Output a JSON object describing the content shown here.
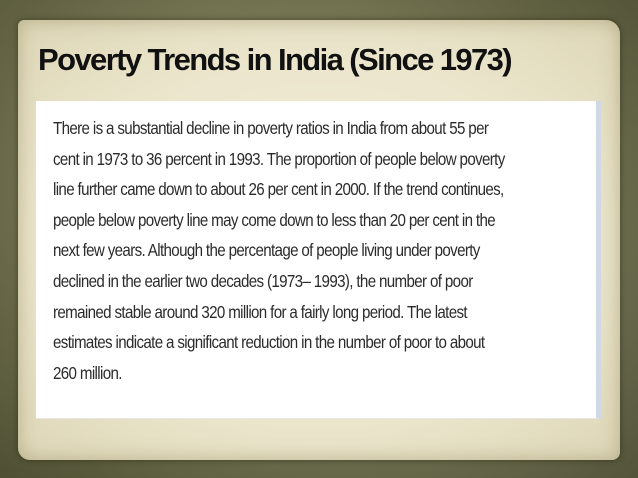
{
  "slide": {
    "title": "Poverty Trends in India (Since 1973)",
    "body_lines": [
      "There is a substantial decline in poverty ratios in India from about 55 per",
      "cent in 1973 to 36 percent in 1993. The proportion of people below poverty",
      "line further came down to about 26 per cent in 2000. If the trend continues,",
      "people below poverty line may come down to less than 20 per cent in the",
      "next few years. Although the percentage of people living under poverty",
      "declined in the earlier two decades (1973– 1993), the number of poor",
      "remained stable around 320 million for a fairly long period. The latest",
      "estimates indicate a significant reduction in the number of poor to about",
      "260 million."
    ]
  },
  "colors": {
    "frame": "#6f6f4f",
    "paper": "#ebe5cc",
    "title_text": "#111111",
    "body_text": "#2b2b2b",
    "textbox_background": "#ffffff",
    "textbox_right_border": "#d0d8e6"
  }
}
